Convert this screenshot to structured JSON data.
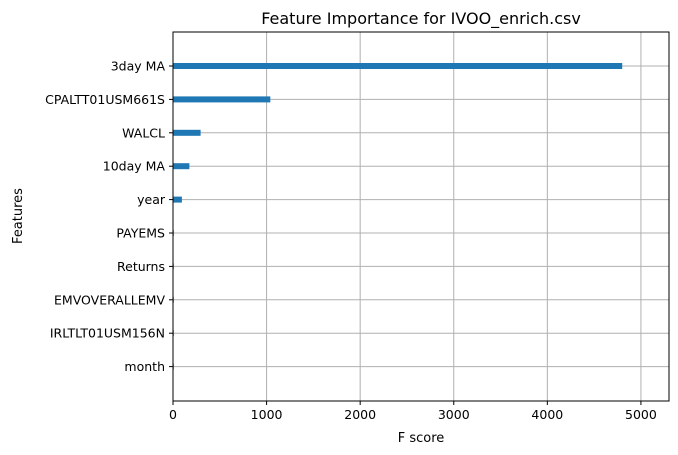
{
  "chart_data": {
    "type": "bar",
    "orientation": "horizontal",
    "title": "Feature Importance for IVOO_enrich.csv",
    "xlabel": "F score",
    "ylabel": "Features",
    "categories": [
      "3day MA",
      "CPALTT01USM661S",
      "WALCL",
      "10day MA",
      "year",
      "PAYEMS",
      "Returns",
      "EMVOVERALLEMV",
      "IRLTLT01USM156N",
      "month"
    ],
    "values": [
      4800,
      1040,
      295,
      175,
      95,
      5,
      4,
      3,
      2,
      1
    ],
    "xlim": [
      0,
      5300
    ],
    "xticks": [
      0,
      1000,
      2000,
      3000,
      4000,
      5000
    ],
    "grid": true,
    "bar_color": "#1f77b4"
  }
}
